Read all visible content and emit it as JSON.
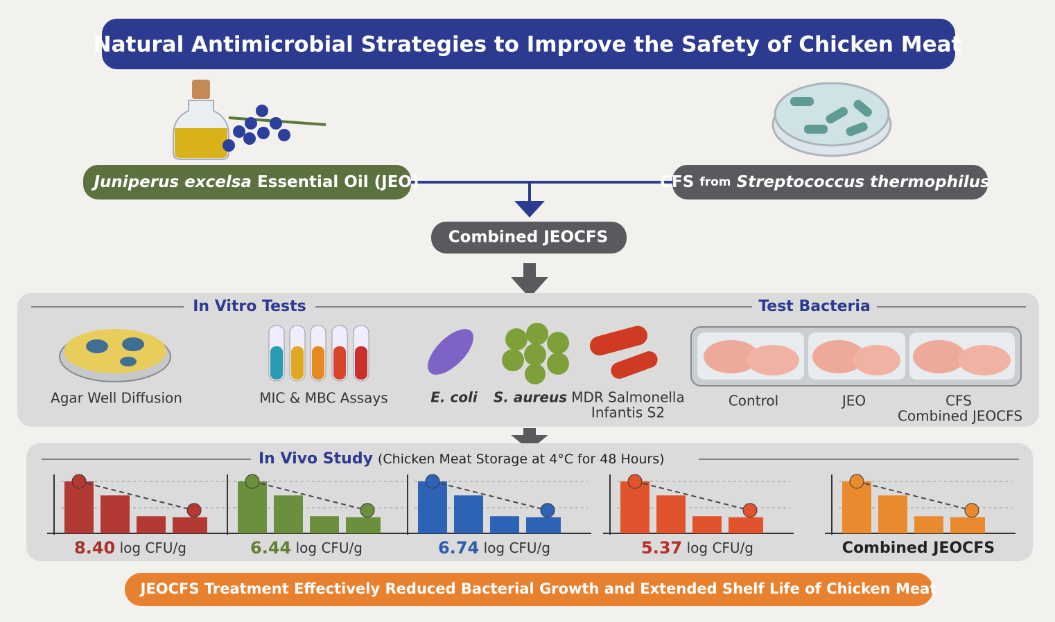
{
  "header": {
    "title": "Natural Antimicrobial Strategies to Improve the Safety of Chicken Meat"
  },
  "sources": {
    "jeo": {
      "name": "Juniperus excelsa",
      "rest": "Essential Oil (JEO)"
    },
    "cfs": {
      "prefix": "CFS",
      "joiner": "from",
      "name": "Streptococcus thermophilus"
    }
  },
  "combined": {
    "label": "Combined JEOCFS"
  },
  "in_vitro": {
    "title": "In Vitro Tests",
    "methods": [
      "Agar Well Diffusion",
      "MIC & MBC Assays"
    ],
    "bacteria": [
      "E. coli",
      "S. aureus",
      "MDR Salmonella",
      "Infantis S2"
    ],
    "groups_title": "Test Bacteria",
    "groups": [
      "Control",
      "JEO",
      "CFS",
      "Combined JEOCFS"
    ]
  },
  "in_vivo": {
    "title": "In Vivo Study",
    "subtitle": "(Chicken Meat Storage  at 4°C for 48 Hours)",
    "results": [
      {
        "value": "8.40",
        "unit": "log CFU/g"
      },
      {
        "value": "6.44",
        "unit": "log CFU/g"
      },
      {
        "value": "6.74",
        "unit": "log CFU/g"
      },
      {
        "value": "5.37",
        "unit": "log CFU/g"
      }
    ],
    "final_label": "Combined JEOCFS"
  },
  "footer": {
    "conclusion": "JEOCFS Treatment Effectively Reduced Bacterial Growth and Extended Shelf Life of Chicken Meat"
  }
}
